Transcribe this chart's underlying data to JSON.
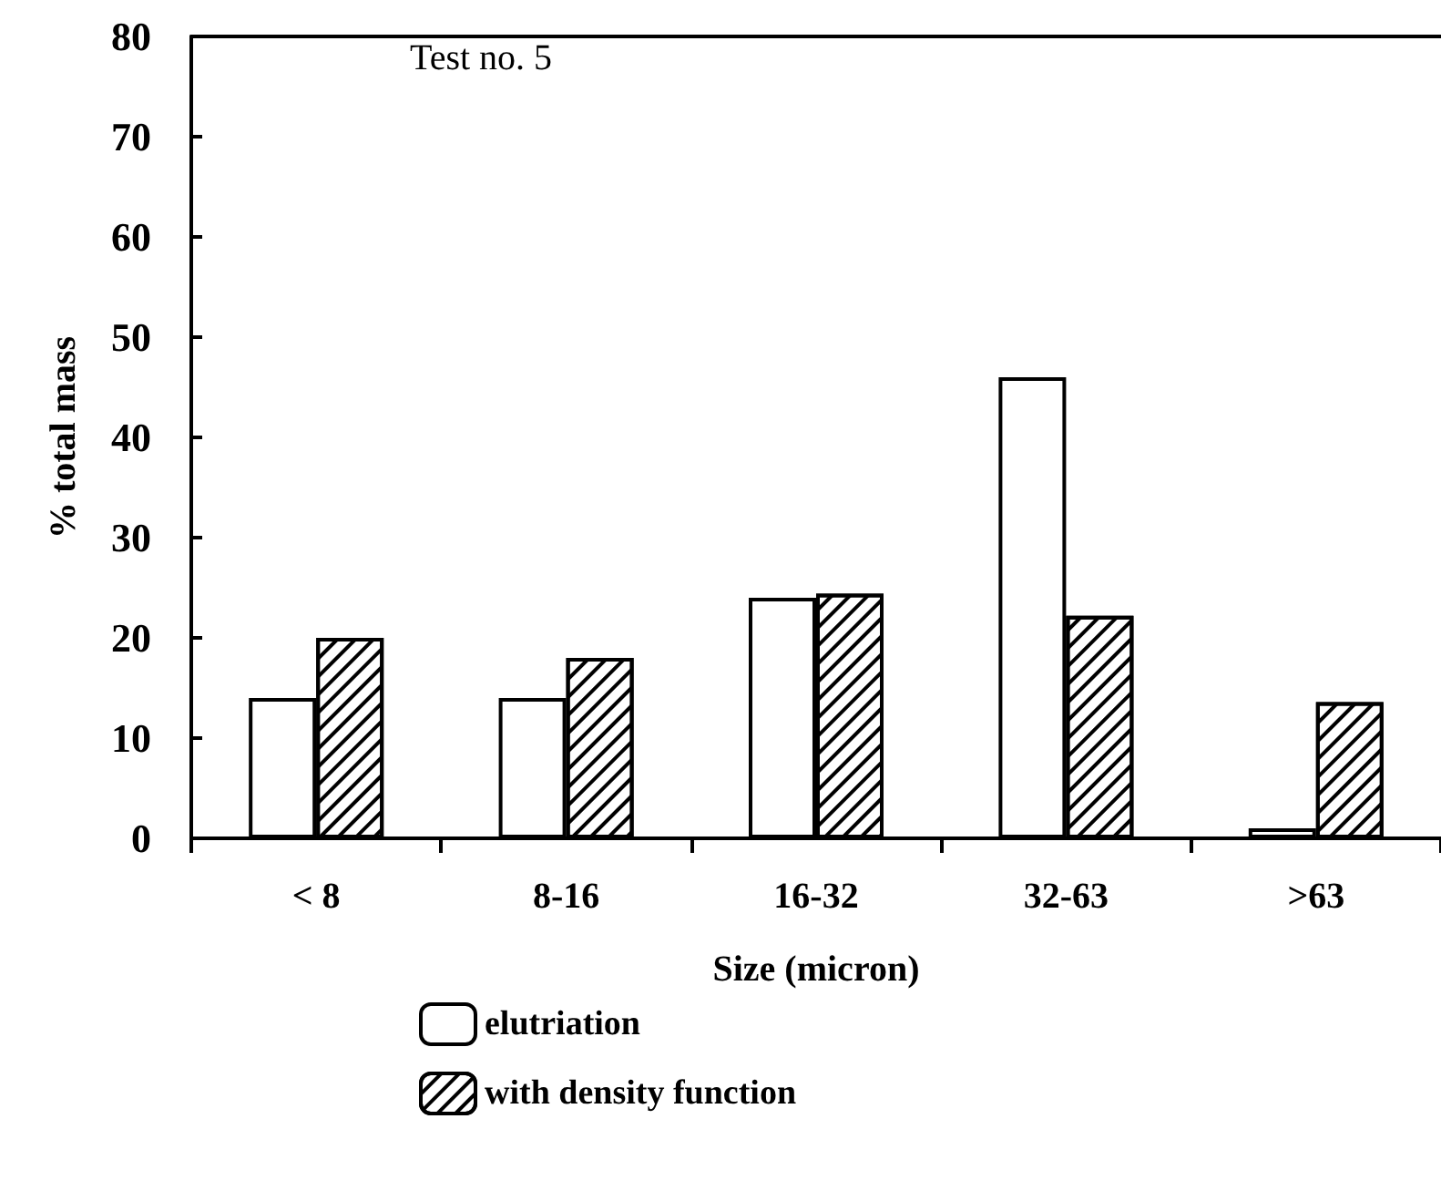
{
  "chart_data": {
    "type": "bar",
    "title": "Test no. 5",
    "xlabel": "Size (micron)",
    "ylabel": "% total mass",
    "categories": [
      "< 8",
      "8-16",
      "16-32",
      "32-63",
      ">63"
    ],
    "series": [
      {
        "name": "elutriation",
        "color": "#ffffff",
        "values": [
          14,
          14,
          24,
          46,
          1
        ]
      },
      {
        "name": "with density function",
        "color": "#ffffff",
        "values": [
          20,
          18,
          24.4,
          22.2,
          13.6
        ]
      }
    ],
    "ylim": [
      0,
      80
    ],
    "yticks": [
      0,
      10,
      20,
      30,
      40,
      50,
      60,
      70,
      80
    ],
    "grid": false,
    "legend": "bottom"
  }
}
